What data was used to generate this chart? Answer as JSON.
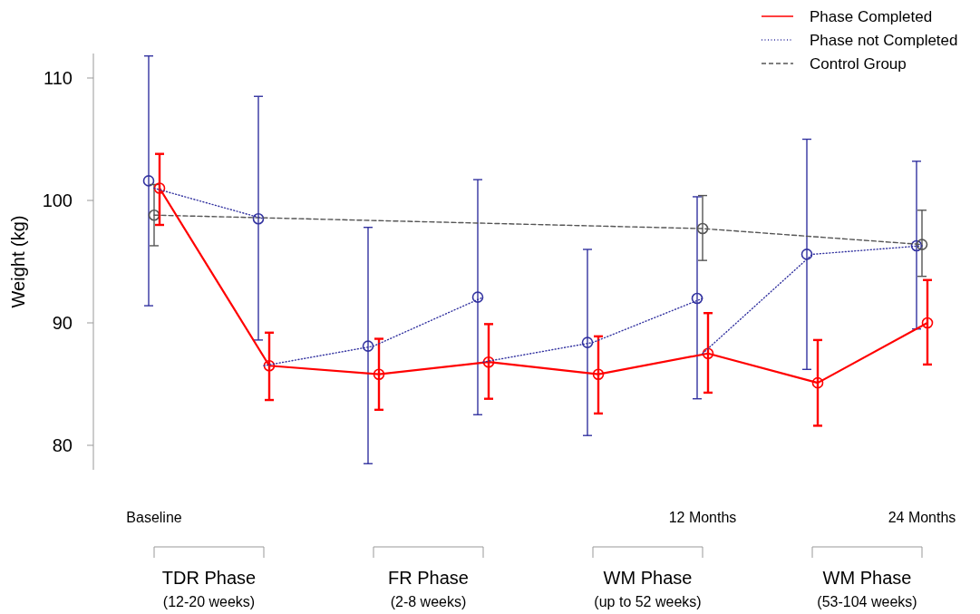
{
  "chart_data": {
    "type": "line",
    "ylabel": "Weight (kg)",
    "legend": "top right",
    "categories": [
      "Baseline",
      null,
      null,
      null,
      null,
      "12 Months",
      null,
      "24 Months"
    ],
    "ylim": [
      78,
      112
    ],
    "yticks": [
      80,
      90,
      100,
      110
    ],
    "annotations": [
      "TDR Phase",
      "(12-20 weeks)",
      "FR Phase",
      "(2-8 weeks)",
      "WM Phase",
      "(up to 52 weeks)",
      "WM Phase",
      "(53-104 weeks)"
    ],
    "series": [
      {
        "name": "Phase Completed",
        "color": "#ff0000",
        "line_style": "solid",
        "marker": "circle",
        "values": [
          101.0,
          86.5,
          85.8,
          86.8,
          85.8,
          87.5,
          85.1,
          90.0
        ],
        "errors": [
          [
            98.0,
            103.8
          ],
          [
            83.7,
            89.2
          ],
          [
            82.9,
            88.7
          ],
          [
            83.8,
            89.9
          ],
          [
            82.6,
            88.9
          ],
          [
            84.3,
            90.8
          ],
          [
            81.6,
            88.6
          ],
          [
            86.6,
            93.5
          ]
        ]
      },
      {
        "name": "Phase not Completed",
        "color": "#3333a0",
        "line_style": "dotted",
        "values": [
          101.0,
          98.5,
          null,
          null,
          null,
          null,
          null,
          null
        ]
      },
      {
        "color": "#3333a0",
        "line_style": "dotted",
        "values": [
          null,
          86.5,
          88.1,
          92.1,
          null,
          null,
          null,
          null
        ]
      },
      {
        "color": "#3333a0",
        "line_style": "dotted",
        "values": [
          null,
          null,
          null,
          86.8,
          88.4,
          92.0,
          null,
          null
        ]
      },
      {
        "color": "#3333a0",
        "line_style": "dotted",
        "values": [
          null,
          null,
          null,
          null,
          null,
          87.5,
          95.6,
          96.3
        ]
      },
      {
        "name": "Control Group",
        "color": "#555555",
        "line_style": "dashed",
        "marker": "circle",
        "values": [
          98.8,
          null,
          null,
          null,
          null,
          97.7,
          null,
          96.4
        ],
        "errors": [
          [
            96.3,
            101.3
          ],
          null,
          null,
          null,
          null,
          [
            95.1,
            100.4
          ],
          null,
          [
            93.8,
            99.2
          ]
        ]
      },
      {
        "type": "scatter",
        "color": "#3333a0",
        "marker": "circle",
        "values": [
          101.6,
          98.5,
          88.1,
          92.1,
          88.4,
          92.0,
          95.6,
          96.3
        ],
        "errors": [
          [
            91.4,
            111.8
          ],
          [
            88.6,
            108.5
          ],
          [
            78.5,
            97.8
          ],
          [
            82.5,
            101.7
          ],
          [
            80.8,
            96.0
          ],
          [
            83.8,
            100.3
          ],
          [
            86.2,
            105.0
          ],
          [
            89.5,
            103.2
          ]
        ]
      }
    ]
  }
}
